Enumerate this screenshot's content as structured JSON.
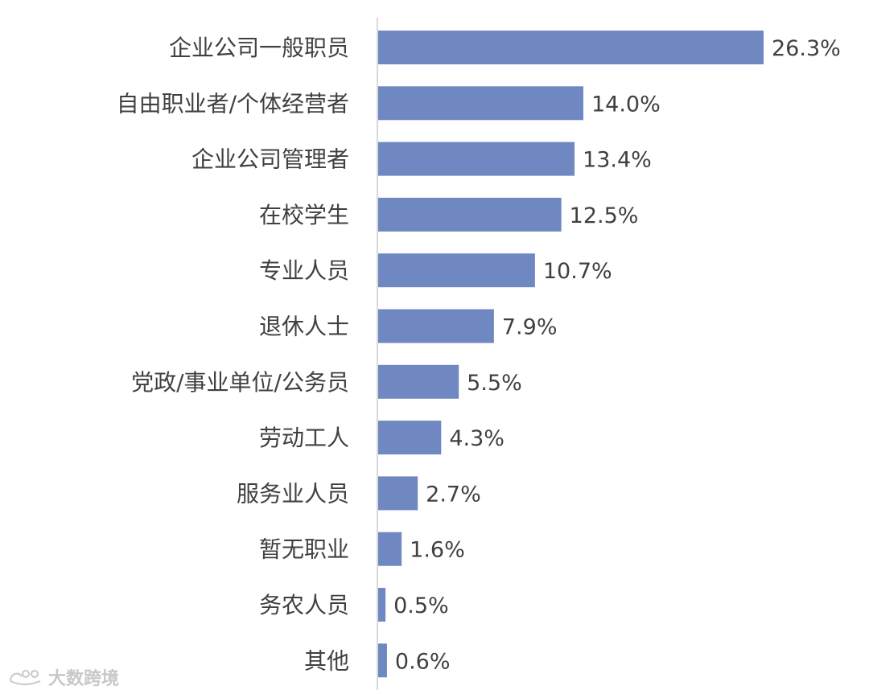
{
  "chart_data": {
    "type": "bar",
    "orientation": "horizontal",
    "categories": [
      "企业公司一般职员",
      "自由职业者/个体经营者",
      "企业公司管理者",
      "在校学生",
      "专业人员",
      "退休人士",
      "党政/事业单位/公务员",
      "劳动工人",
      "服务业人员",
      "暂无职业",
      "务农人员",
      "其他"
    ],
    "values": [
      26.3,
      14.0,
      13.4,
      12.5,
      10.7,
      7.9,
      5.5,
      4.3,
      2.7,
      1.6,
      0.5,
      0.6
    ],
    "value_labels": [
      "26.3%",
      "14.0%",
      "13.4%",
      "12.5%",
      "10.7%",
      "7.9%",
      "5.5%",
      "4.3%",
      "2.7%",
      "1.6%",
      "0.5%",
      "0.6%"
    ],
    "bar_color": "#6f88c2",
    "xlim": [
      0,
      26.3
    ],
    "grid": false,
    "legend": "none"
  },
  "watermark": {
    "text": "大数跨境"
  }
}
